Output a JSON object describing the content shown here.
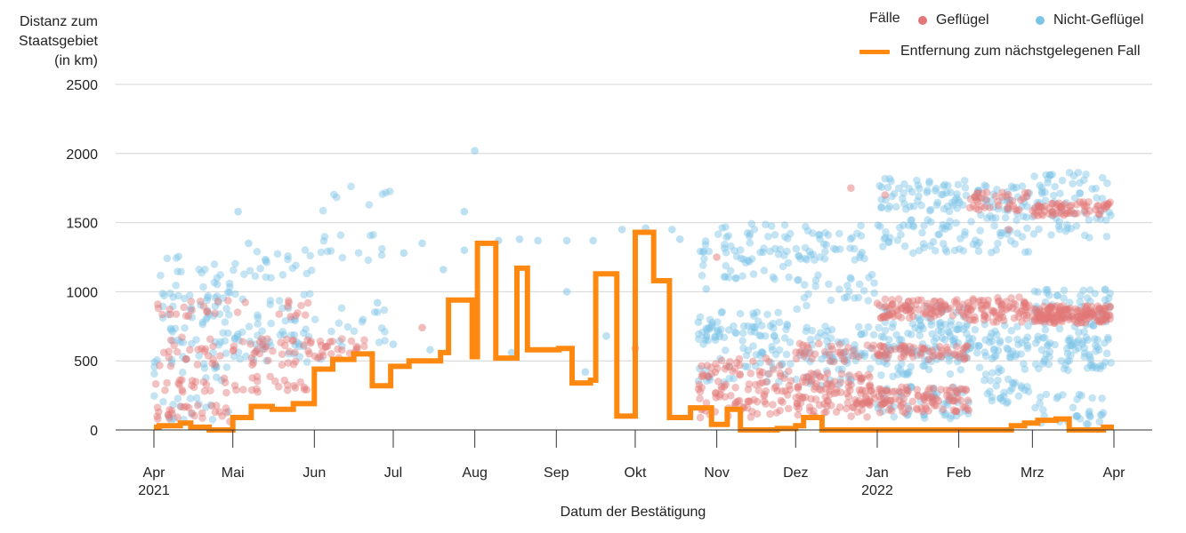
{
  "colors": {
    "poultry": "#e37777",
    "nonpoultry": "#7cc4e6",
    "line": "#ff8811",
    "grid": "#d4d4d4",
    "axis": "#333333"
  },
  "legend": {
    "title": "Fälle",
    "poultry": "Geflügel",
    "nonpoultry": "Nicht-Geflügel",
    "line": "Entfernung zum nächstgelegenen Fall"
  },
  "chart_data": {
    "type": "scatter",
    "ylabel": [
      "Distanz zum",
      "Staatsgebiet",
      "(in km)"
    ],
    "xlabel": "Datum der Bestätigung",
    "ylim": [
      0,
      2500
    ],
    "yticks": [
      "0",
      "500",
      "1000",
      "1500",
      "2000",
      "2500"
    ],
    "xlim": [
      "2021-04-01",
      "2022-04-01"
    ],
    "xticks": [
      {
        "date": "2021-04-01",
        "label": "Apr",
        "sub": "2021"
      },
      {
        "date": "2021-05-01",
        "label": "Mai",
        "sub": ""
      },
      {
        "date": "2021-06-01",
        "label": "Jun",
        "sub": ""
      },
      {
        "date": "2021-07-01",
        "label": "Jul",
        "sub": ""
      },
      {
        "date": "2021-08-01",
        "label": "Aug",
        "sub": ""
      },
      {
        "date": "2021-09-01",
        "label": "Sep",
        "sub": ""
      },
      {
        "date": "2021-10-01",
        "label": "Okt",
        "sub": ""
      },
      {
        "date": "2021-11-01",
        "label": "Nov",
        "sub": ""
      },
      {
        "date": "2021-12-01",
        "label": "Dez",
        "sub": ""
      },
      {
        "date": "2022-01-01",
        "label": "Jan",
        "sub": "2022"
      },
      {
        "date": "2022-02-01",
        "label": "Feb",
        "sub": ""
      },
      {
        "date": "2022-03-01",
        "label": "Mrz",
        "sub": ""
      },
      {
        "date": "2022-04-01",
        "label": "Apr",
        "sub": ""
      }
    ],
    "grid": true,
    "legend_position": "top-right",
    "series": [
      {
        "name": "Geflügel",
        "kind": "scatter",
        "clusters": [
          {
            "from": "2021-04-01",
            "to": "2021-04-30",
            "y": [
              120,
              320,
              520,
              620,
              880
            ],
            "spread": 60,
            "count": 90
          },
          {
            "from": "2021-05-01",
            "to": "2021-05-31",
            "y": [
              330,
              530,
              600,
              880
            ],
            "spread": 60,
            "count": 70
          },
          {
            "from": "2021-06-01",
            "to": "2021-06-20",
            "y": [
              560,
              620
            ],
            "spread": 50,
            "count": 25
          },
          {
            "from": "2021-10-25",
            "to": "2021-11-30",
            "y": [
              150,
              250,
              350,
              450
            ],
            "spread": 70,
            "count": 110
          },
          {
            "from": "2021-12-01",
            "to": "2021-12-31",
            "y": [
              160,
              250,
              350,
              560
            ],
            "spread": 70,
            "count": 150
          },
          {
            "from": "2022-01-01",
            "to": "2022-02-05",
            "y": [
              170,
              260,
              560,
              860,
              900
            ],
            "spread": 50,
            "count": 260
          },
          {
            "from": "2022-02-05",
            "to": "2022-02-28",
            "y": [
              850,
              900,
              1650
            ],
            "spread": 70,
            "count": 110
          },
          {
            "from": "2022-03-01",
            "to": "2022-03-31",
            "y": [
              820,
              850,
              1600
            ],
            "spread": 50,
            "count": 230
          }
        ],
        "points": [
          [
            "2021-05-23",
            820
          ],
          [
            "2021-07-12",
            740
          ],
          [
            "2021-11-01",
            1250
          ],
          [
            "2021-12-22",
            1750
          ],
          [
            "2022-01-04",
            1700
          ],
          [
            "2022-02-20",
            1450
          ],
          [
            "2021-10-01",
            590
          ]
        ]
      },
      {
        "name": "Nicht-Geflügel",
        "kind": "scatter",
        "clusters": [
          {
            "from": "2021-04-01",
            "to": "2021-04-30",
            "y": [
              150,
              450,
              650,
              800,
              1000,
              1200
            ],
            "spread": 100,
            "count": 110
          },
          {
            "from": "2021-05-01",
            "to": "2021-05-31",
            "y": [
              600,
              700,
              900,
              1200
            ],
            "spread": 110,
            "count": 80
          },
          {
            "from": "2021-06-01",
            "to": "2021-06-30",
            "y": [
              600,
              800,
              1300,
              1650
            ],
            "spread": 120,
            "count": 40
          },
          {
            "from": "2021-10-25",
            "to": "2021-11-30",
            "y": [
              450,
              650,
              750,
              1200,
              1400
            ],
            "spread": 110,
            "count": 170
          },
          {
            "from": "2021-12-01",
            "to": "2021-12-31",
            "y": [
              450,
              620,
              1000,
              1350
            ],
            "spread": 130,
            "count": 140
          },
          {
            "from": "2022-01-01",
            "to": "2022-02-05",
            "y": [
              200,
              500,
              650,
              780,
              1400,
              1700
            ],
            "spread": 120,
            "count": 300
          },
          {
            "from": "2022-02-05",
            "to": "2022-02-28",
            "y": [
              300,
              550,
              650,
              1400,
              1650
            ],
            "spread": 120,
            "count": 150
          },
          {
            "from": "2022-03-01",
            "to": "2022-03-31",
            "y": [
              150,
              550,
              650,
              900,
              1500,
              1750
            ],
            "spread": 120,
            "count": 220
          }
        ],
        "points": [
          [
            "2021-05-03",
            1580
          ],
          [
            "2021-05-07",
            1350
          ],
          [
            "2021-07-05",
            1280
          ],
          [
            "2021-07-12",
            1350
          ],
          [
            "2021-07-20",
            1160
          ],
          [
            "2021-07-28",
            1300
          ],
          [
            "2021-07-28",
            1580
          ],
          [
            "2021-08-01",
            2020
          ],
          [
            "2021-08-10",
            1370
          ],
          [
            "2021-08-18",
            1380
          ],
          [
            "2021-08-25",
            1370
          ],
          [
            "2021-09-05",
            1370
          ],
          [
            "2021-09-05",
            1000
          ],
          [
            "2021-09-15",
            1370
          ],
          [
            "2021-09-20",
            680
          ],
          [
            "2021-09-26",
            1450
          ],
          [
            "2021-10-05",
            1460
          ],
          [
            "2021-10-15",
            1450
          ],
          [
            "2021-10-18",
            1380
          ],
          [
            "2021-10-25",
            780
          ],
          [
            "2021-10-28",
            1020
          ],
          [
            "2021-09-12",
            420
          ],
          [
            "2021-08-15",
            560
          ],
          [
            "2021-07-15",
            580
          ],
          [
            "2021-06-25",
            920
          ],
          [
            "2021-07-01",
            620
          ]
        ]
      },
      {
        "name": "Entfernung zum nächstgelegenen Fall",
        "kind": "step",
        "points": [
          [
            "2021-04-01",
            20
          ],
          [
            "2021-04-03",
            30
          ],
          [
            "2021-04-11",
            50
          ],
          [
            "2021-04-15",
            20
          ],
          [
            "2021-04-22",
            0
          ],
          [
            "2021-05-01",
            90
          ],
          [
            "2021-05-08",
            170
          ],
          [
            "2021-05-16",
            150
          ],
          [
            "2021-05-24",
            190
          ],
          [
            "2021-06-01",
            440
          ],
          [
            "2021-06-08",
            510
          ],
          [
            "2021-06-16",
            550
          ],
          [
            "2021-06-23",
            320
          ],
          [
            "2021-06-30",
            460
          ],
          [
            "2021-07-07",
            500
          ],
          [
            "2021-07-19",
            560
          ],
          [
            "2021-07-22",
            940
          ],
          [
            "2021-07-31",
            530
          ],
          [
            "2021-08-02",
            1350
          ],
          [
            "2021-08-09",
            520
          ],
          [
            "2021-08-17",
            1170
          ],
          [
            "2021-08-21",
            580
          ],
          [
            "2021-09-02",
            590
          ],
          [
            "2021-09-07",
            340
          ],
          [
            "2021-09-14",
            360
          ],
          [
            "2021-09-16",
            1130
          ],
          [
            "2021-09-24",
            100
          ],
          [
            "2021-10-01",
            1430
          ],
          [
            "2021-10-08",
            1080
          ],
          [
            "2021-10-14",
            90
          ],
          [
            "2021-10-22",
            160
          ],
          [
            "2021-10-30",
            40
          ],
          [
            "2021-11-05",
            150
          ],
          [
            "2021-11-10",
            0
          ],
          [
            "2021-11-24",
            10
          ],
          [
            "2021-12-01",
            30
          ],
          [
            "2021-12-04",
            90
          ],
          [
            "2021-12-11",
            0
          ],
          [
            "2021-12-31",
            0
          ],
          [
            "2022-02-19",
            0
          ],
          [
            "2022-02-21",
            30
          ],
          [
            "2022-02-26",
            50
          ],
          [
            "2022-03-03",
            70
          ],
          [
            "2022-03-10",
            80
          ],
          [
            "2022-03-15",
            0
          ],
          [
            "2022-03-28",
            20
          ],
          [
            "2022-04-01",
            20
          ]
        ]
      }
    ]
  }
}
